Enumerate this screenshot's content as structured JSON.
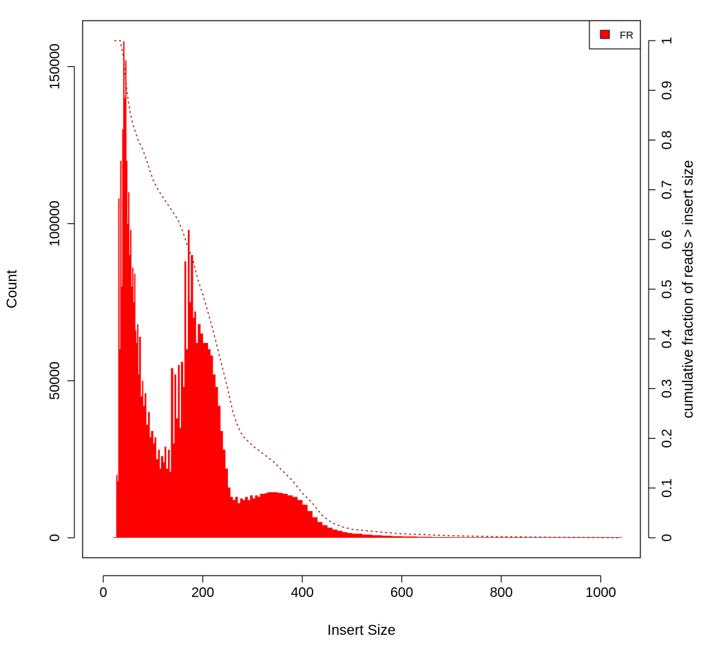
{
  "chart_data": {
    "type": "bar",
    "xlabel": "Insert Size",
    "ylabel": "Count",
    "y2label": "cumulative fraction of reads > insert size",
    "xlim": [
      0,
      1050
    ],
    "ylim": [
      0,
      160000
    ],
    "y2lim": [
      0,
      1
    ],
    "xticks": [
      0,
      200,
      400,
      600,
      800,
      1000
    ],
    "yticks": [
      0,
      50000,
      100000,
      150000
    ],
    "y2ticks": [
      0,
      0.1,
      0.2,
      0.3,
      0.4,
      0.5,
      0.6,
      0.7,
      0.8,
      0.9,
      1
    ],
    "xtick_labels": [
      "0",
      "200",
      "400",
      "600",
      "800",
      "1000"
    ],
    "ytick_labels": [
      "0",
      "50000",
      "100000",
      "150000"
    ],
    "y2tick_labels": [
      "0",
      "0.1",
      "0.2",
      "0.3",
      "0.4",
      "0.5",
      "0.6",
      "0.7",
      "0.8",
      "0.9",
      "1"
    ],
    "legend_position": "top-right",
    "series": [
      {
        "name": "FR",
        "kind": "histogram",
        "color": "#ff0000",
        "x": [
          20,
          24,
          26,
          28,
          30,
          32,
          34,
          36,
          38,
          40,
          42,
          44,
          46,
          48,
          50,
          52,
          54,
          56,
          58,
          60,
          62,
          64,
          66,
          68,
          70,
          72,
          75,
          78,
          80,
          83,
          86,
          90,
          93,
          96,
          100,
          103,
          106,
          110,
          113,
          116,
          120,
          123,
          126,
          130,
          133,
          136,
          140,
          143,
          146,
          150,
          153,
          156,
          160,
          163,
          166,
          170,
          173,
          176,
          180,
          183,
          186,
          190,
          195,
          200,
          205,
          210,
          215,
          220,
          225,
          230,
          235,
          240,
          245,
          250,
          255,
          260,
          265,
          270,
          275,
          280,
          285,
          290,
          295,
          300,
          305,
          310,
          315,
          320,
          325,
          330,
          340,
          350,
          360,
          370,
          380,
          390,
          400,
          410,
          420,
          430,
          440,
          450,
          460,
          470,
          480,
          490,
          500,
          520,
          540,
          560,
          580,
          600,
          630,
          660,
          700,
          750,
          800,
          850,
          900,
          950,
          1000,
          1040
        ],
        "y": [
          0,
          0,
          20000,
          18000,
          108000,
          60000,
          120000,
          80000,
          130000,
          158000,
          140000,
          152000,
          120000,
          100000,
          110000,
          90000,
          98000,
          80000,
          86000,
          75000,
          84000,
          66000,
          62000,
          68000,
          52000,
          64000,
          45000,
          50000,
          42000,
          46000,
          36000,
          40000,
          32000,
          34000,
          30000,
          32000,
          25000,
          28000,
          22000,
          26000,
          24000,
          29000,
          22000,
          28000,
          21000,
          54000,
          30000,
          52000,
          38000,
          55000,
          35000,
          56000,
          48000,
          88000,
          60000,
          98000,
          75000,
          90000,
          70000,
          72000,
          62000,
          68000,
          65000,
          62000,
          62000,
          60000,
          58000,
          52000,
          48000,
          42000,
          34000,
          28000,
          22000,
          16000,
          13000,
          12000,
          13000,
          11000,
          12500,
          12000,
          13000,
          12000,
          13500,
          12500,
          13500,
          13000,
          14000,
          14000,
          14200,
          14500,
          14500,
          14300,
          14000,
          13500,
          13000,
          12000,
          10500,
          8500,
          6500,
          5000,
          4000,
          3200,
          2600,
          2200,
          1800,
          1500,
          1300,
          1000,
          800,
          650,
          500,
          400,
          300,
          220,
          150,
          100,
          70,
          50,
          35,
          25,
          15,
          10
        ]
      },
      {
        "name": "",
        "kind": "cumulative",
        "axis": "y2",
        "style": "dotted",
        "color": "#a52a2a",
        "x": [
          22,
          34,
          40,
          45,
          50,
          55,
          60,
          70,
          80,
          90,
          100,
          110,
          120,
          130,
          140,
          150,
          160,
          170,
          180,
          190,
          200,
          210,
          220,
          230,
          240,
          250,
          260,
          270,
          280,
          290,
          300,
          320,
          340,
          360,
          380,
          400,
          420,
          440,
          460,
          480,
          500,
          550,
          600,
          700,
          800,
          900,
          1000,
          1040
        ],
        "y": [
          1.0,
          1.0,
          0.97,
          0.92,
          0.88,
          0.85,
          0.83,
          0.8,
          0.78,
          0.75,
          0.72,
          0.7,
          0.685,
          0.67,
          0.655,
          0.64,
          0.615,
          0.585,
          0.56,
          0.52,
          0.49,
          0.455,
          0.42,
          0.38,
          0.34,
          0.3,
          0.255,
          0.225,
          0.205,
          0.195,
          0.185,
          0.17,
          0.155,
          0.135,
          0.115,
          0.09,
          0.07,
          0.045,
          0.03,
          0.022,
          0.017,
          0.012,
          0.008,
          0.004,
          0.002,
          0.001,
          0.0005,
          0
        ]
      }
    ]
  }
}
